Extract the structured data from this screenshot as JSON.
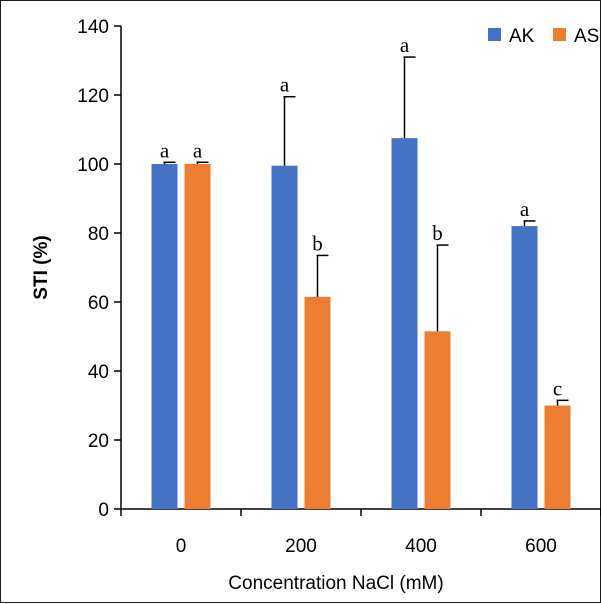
{
  "chart_data": {
    "type": "bar",
    "categories": [
      "0",
      "200",
      "400",
      "600"
    ],
    "xlabel": "Concentration NaCl (mM)",
    "ylabel": "STI (%)",
    "ylim": [
      0,
      140
    ],
    "yticks": [
      0,
      20,
      40,
      60,
      80,
      100,
      120,
      140
    ],
    "grid": false,
    "legend_position": "top-right",
    "series": [
      {
        "name": "AK",
        "color": "#4472C4",
        "values": [
          100,
          99.5,
          107.5,
          82
        ],
        "errors": [
          0.5,
          20,
          23.5,
          1.5
        ],
        "significance": [
          "a",
          "a",
          "a",
          "a"
        ]
      },
      {
        "name": "AS",
        "color": "#ED7D31",
        "values": [
          100,
          61.5,
          51.5,
          30
        ],
        "errors": [
          0.5,
          12,
          25,
          1.5
        ],
        "significance": [
          "a",
          "b",
          "b",
          "c"
        ]
      }
    ]
  }
}
